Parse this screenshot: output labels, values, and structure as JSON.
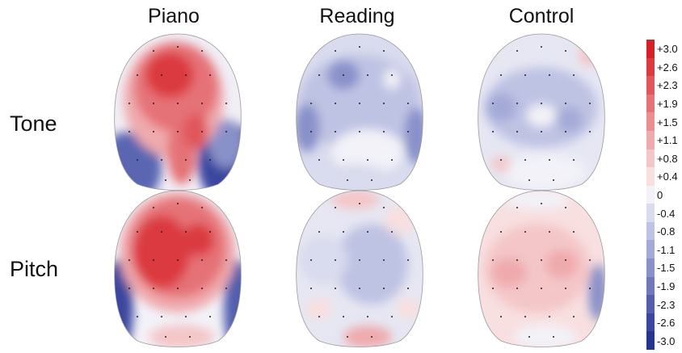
{
  "columns": [
    "Piano",
    "Reading",
    "Control"
  ],
  "rows": [
    "Tone",
    "Pitch"
  ],
  "colorbar": {
    "ticks": [
      "+3.0",
      "+2.6",
      "+2.3",
      "+1.9",
      "+1.5",
      "+1.1",
      "+0.8",
      "+0.4",
      "0",
      "-0.4",
      "-0.8",
      "-1.1",
      "-1.5",
      "-1.9",
      "-2.3",
      "-2.6",
      "-3.0"
    ],
    "colors": [
      "#d62027",
      "#db3a40",
      "#e0565b",
      "#e57277",
      "#ea8e92",
      "#efaaad",
      "#f4c6c8",
      "#f8dfe0",
      "#f2f2f8",
      "#d9dbee",
      "#bfc3e3",
      "#a4aad7",
      "#8991c9",
      "#6e78bb",
      "#535fad",
      "#3a479f",
      "#243590"
    ]
  }
}
